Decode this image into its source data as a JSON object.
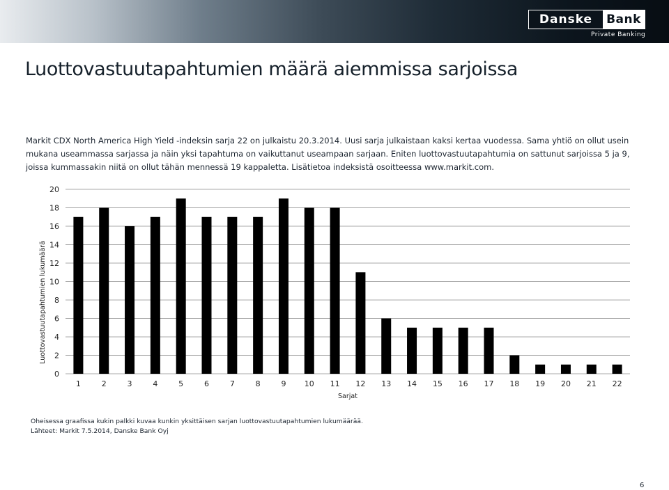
{
  "header": {
    "logo_part1": "Danske",
    "logo_part2": "Bank",
    "logo_sub": "Private Banking"
  },
  "title": "Luottovastuutapahtumien määrä aiemmissa sarjoissa",
  "intro": "Markit CDX North America High Yield  -indeksin sarja 22 on julkaistu 20.3.2014. Uusi sarja julkaistaan kaksi kertaa vuodessa. Sama yhtiö on ollut usein mukana useammassa sarjassa ja näin yksi tapahtuma on vaikuttanut useampaan sarjaan. Eniten luottovastuutapahtumia on sattunut sarjoissa 5 ja 9, joissa kummassakin niitä on ollut tähän mennessä 19 kappaletta. Lisätietoa indeksistä osoitteessa www.markit.com.",
  "chart_data": {
    "type": "bar",
    "categories": [
      "1",
      "2",
      "3",
      "4",
      "5",
      "6",
      "7",
      "8",
      "9",
      "10",
      "11",
      "12",
      "13",
      "14",
      "15",
      "16",
      "17",
      "18",
      "19",
      "20",
      "21",
      "22"
    ],
    "values": [
      17,
      18,
      16,
      17,
      19,
      17,
      17,
      17,
      19,
      18,
      18,
      11,
      6,
      5,
      5,
      5,
      5,
      2,
      1,
      1,
      1,
      1
    ],
    "xlabel": "Sarjat",
    "ylabel": "Luottovastuutapahtumien lukumäärä",
    "ylim": [
      0,
      20
    ],
    "yticks": [
      0,
      2,
      4,
      6,
      8,
      10,
      12,
      14,
      16,
      18,
      20
    ],
    "grid": true,
    "bar_color": "#000000"
  },
  "footnote": {
    "line1": "Oheisessa graafissa kukin palkki kuvaa kunkin yksittäisen sarjan luottovastuutapahtumien lukumäärää.",
    "line2": "Lähteet: Markit 7.5.2014, Danske Bank Oyj"
  },
  "page_number": "6"
}
